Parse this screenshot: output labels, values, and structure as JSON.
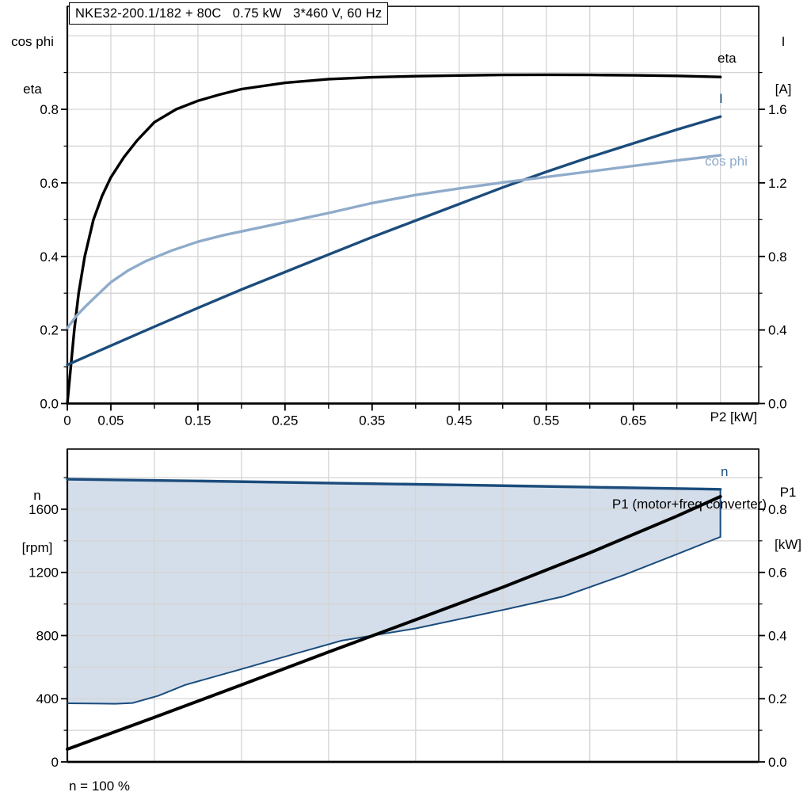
{
  "colors": {
    "black": "#000000",
    "dark_blue": "#1b4c7c",
    "light_blue": "#8fabca",
    "band_fill": "#d4deea",
    "grid": "#d4d4d4",
    "background": "#ffffff"
  },
  "footnote": "n = 100 %",
  "chart_data": [
    {
      "type": "line",
      "title": "NKE32-200.1/182 + 80C   0.75 kW   3*460 V, 60 Hz",
      "x_axis": {
        "label": "P2 [kW]",
        "range": [
          0,
          0.794
        ],
        "grid_step": 0.05,
        "ticks": [
          {
            "v": 0,
            "t": "0"
          },
          {
            "v": 0.05,
            "t": "0.05"
          },
          {
            "v": 0.15,
            "t": "0.15"
          },
          {
            "v": 0.25,
            "t": "0.25"
          },
          {
            "v": 0.35,
            "t": "0.35"
          },
          {
            "v": 0.45,
            "t": "0.45"
          },
          {
            "v": 0.55,
            "t": "0.55"
          },
          {
            "v": 0.65,
            "t": "0.65"
          }
        ],
        "minor_ticks": [
          0.1,
          0.2,
          0.3,
          0.4,
          0.5,
          0.6,
          0.7
        ]
      },
      "left_axis": {
        "label_lines": [
          "cos phi",
          "eta"
        ],
        "range": [
          0,
          1.08
        ],
        "grid_step": 0.1,
        "ticks": [
          {
            "v": 0.0,
            "t": "0.0"
          },
          {
            "v": 0.2,
            "t": "0.2"
          },
          {
            "v": 0.4,
            "t": "0.4"
          },
          {
            "v": 0.6,
            "t": "0.6"
          },
          {
            "v": 0.8,
            "t": "0.8"
          }
        ],
        "minor_ticks": [
          0.1,
          0.3,
          0.5,
          0.7,
          0.9
        ]
      },
      "right_axis": {
        "label_lines": [
          "I",
          "[A]"
        ],
        "range": [
          0,
          2.16
        ],
        "ticks": [
          {
            "v": 0.0,
            "t": "0.0"
          },
          {
            "v": 0.4,
            "t": "0.4"
          },
          {
            "v": 0.8,
            "t": "0.8"
          },
          {
            "v": 1.2,
            "t": "1.2"
          },
          {
            "v": 1.6,
            "t": "1.6"
          }
        ],
        "minor_ticks": [
          0.2,
          0.6,
          1.0,
          1.4,
          1.8
        ]
      },
      "series": [
        {
          "name": "eta",
          "axis": "left",
          "color": "#000000",
          "width": 3.4,
          "points": [
            [
              0,
              0
            ],
            [
              0.004,
              0.1
            ],
            [
              0.008,
              0.2
            ],
            [
              0.013,
              0.3
            ],
            [
              0.02,
              0.4
            ],
            [
              0.03,
              0.5
            ],
            [
              0.04,
              0.565
            ],
            [
              0.05,
              0.615
            ],
            [
              0.065,
              0.67
            ],
            [
              0.08,
              0.715
            ],
            [
              0.1,
              0.765
            ],
            [
              0.125,
              0.8
            ],
            [
              0.15,
              0.823
            ],
            [
              0.175,
              0.84
            ],
            [
              0.2,
              0.855
            ],
            [
              0.25,
              0.872
            ],
            [
              0.3,
              0.882
            ],
            [
              0.35,
              0.887
            ],
            [
              0.4,
              0.89
            ],
            [
              0.45,
              0.892
            ],
            [
              0.5,
              0.8935
            ],
            [
              0.55,
              0.894
            ],
            [
              0.6,
              0.8935
            ],
            [
              0.65,
              0.8925
            ],
            [
              0.7,
              0.891
            ],
            [
              0.75,
              0.888
            ]
          ]
        },
        {
          "name": "I",
          "axis": "right",
          "color": "#1b4c7c",
          "width": 3.4,
          "points": [
            [
              0,
              0.21
            ],
            [
              0.05,
              0.315
            ],
            [
              0.1,
              0.418
            ],
            [
              0.15,
              0.52
            ],
            [
              0.2,
              0.62
            ],
            [
              0.25,
              0.715
            ],
            [
              0.3,
              0.81
            ],
            [
              0.35,
              0.905
            ],
            [
              0.4,
              0.995
            ],
            [
              0.45,
              1.085
            ],
            [
              0.5,
              1.175
            ],
            [
              0.55,
              1.26
            ],
            [
              0.6,
              1.34
            ],
            [
              0.65,
              1.415
            ],
            [
              0.7,
              1.49
            ],
            [
              0.75,
              1.56
            ]
          ]
        },
        {
          "name": "cos phi",
          "axis": "left",
          "color": "#8fabca",
          "width": 3.4,
          "points": [
            [
              0,
              0.205
            ],
            [
              0.01,
              0.237
            ],
            [
              0.02,
              0.262
            ],
            [
              0.03,
              0.285
            ],
            [
              0.05,
              0.33
            ],
            [
              0.07,
              0.362
            ],
            [
              0.09,
              0.387
            ],
            [
              0.12,
              0.416
            ],
            [
              0.15,
              0.44
            ],
            [
              0.18,
              0.458
            ],
            [
              0.2,
              0.468
            ],
            [
              0.25,
              0.493
            ],
            [
              0.3,
              0.518
            ],
            [
              0.35,
              0.545
            ],
            [
              0.4,
              0.567
            ],
            [
              0.45,
              0.585
            ],
            [
              0.5,
              0.601
            ],
            [
              0.55,
              0.616
            ],
            [
              0.6,
              0.631
            ],
            [
              0.65,
              0.646
            ],
            [
              0.7,
              0.661
            ],
            [
              0.75,
              0.675
            ]
          ]
        }
      ]
    },
    {
      "type": "line",
      "x_axis": {
        "label": "",
        "range": [
          0,
          0.794
        ],
        "grid_step": 0.1,
        "ticks": [],
        "minor_ticks": []
      },
      "left_axis": {
        "label_lines": [
          "n",
          "[rpm]"
        ],
        "range": [
          0,
          1981
        ],
        "grid_step": 200,
        "ticks": [
          {
            "v": 0,
            "t": "0"
          },
          {
            "v": 400,
            "t": "400"
          },
          {
            "v": 800,
            "t": "800"
          },
          {
            "v": 1200,
            "t": "1200"
          },
          {
            "v": 1600,
            "t": "1600"
          }
        ],
        "minor_ticks": [
          200,
          600,
          1000,
          1400,
          1800
        ]
      },
      "right_axis": {
        "label_lines": [
          "P1",
          "[kW]"
        ],
        "range": [
          0,
          0.9905
        ],
        "ticks": [
          {
            "v": 0.0,
            "t": "0.0"
          },
          {
            "v": 0.2,
            "t": "0.2"
          },
          {
            "v": 0.4,
            "t": "0.4"
          },
          {
            "v": 0.6,
            "t": "0.6"
          },
          {
            "v": 0.8,
            "t": "0.8"
          }
        ],
        "minor_ticks": [
          0.1,
          0.3,
          0.5,
          0.7,
          0.9
        ]
      },
      "band": {
        "name": "speed-control-range",
        "axis": "left",
        "fill": "#d4deea",
        "border": "#1b4c7c",
        "upper": [
          [
            0,
            1790
          ],
          [
            0.15,
            1779
          ],
          [
            0.3,
            1766
          ],
          [
            0.45,
            1754
          ],
          [
            0.6,
            1740
          ],
          [
            0.75,
            1726
          ]
        ],
        "lower": [
          [
            0,
            371
          ],
          [
            0.055,
            368
          ],
          [
            0.075,
            373
          ],
          [
            0.105,
            420
          ],
          [
            0.135,
            487
          ],
          [
            0.2,
            588
          ],
          [
            0.27,
            698
          ],
          [
            0.315,
            768
          ],
          [
            0.4,
            845
          ],
          [
            0.505,
            968
          ],
          [
            0.57,
            1048
          ],
          [
            0.64,
            1185
          ],
          [
            0.7,
            1315
          ],
          [
            0.75,
            1425
          ]
        ]
      },
      "series": [
        {
          "name": "n",
          "axis": "left",
          "color": "#1b4c7c",
          "width": 3.4,
          "points": [
            [
              0,
              1790
            ],
            [
              0.15,
              1779
            ],
            [
              0.3,
              1766
            ],
            [
              0.45,
              1754
            ],
            [
              0.6,
              1740
            ],
            [
              0.75,
              1726
            ]
          ]
        },
        {
          "name": "P1 (motor+freq converter)",
          "axis": "right",
          "color": "#000000",
          "width": 4,
          "points": [
            [
              0,
              0.04
            ],
            [
              0.1,
              0.141
            ],
            [
              0.2,
              0.244
            ],
            [
              0.3,
              0.348
            ],
            [
              0.4,
              0.45
            ],
            [
              0.5,
              0.553
            ],
            [
              0.6,
              0.662
            ],
            [
              0.7,
              0.778
            ],
            [
              0.75,
              0.84
            ]
          ]
        }
      ],
      "footnote": "n = 100 %"
    }
  ]
}
